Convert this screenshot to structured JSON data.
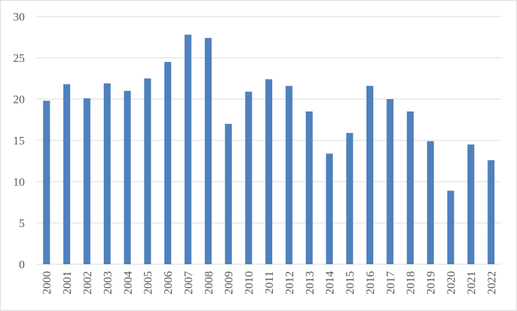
{
  "chart_data": {
    "type": "bar",
    "categories": [
      "2000",
      "2001",
      "2002",
      "2003",
      "2004",
      "2005",
      "2006",
      "2007",
      "2008",
      "2009",
      "2010",
      "2011",
      "2012",
      "2013",
      "2014",
      "2015",
      "2016",
      "2017",
      "2018",
      "2019",
      "2020",
      "2021",
      "2022"
    ],
    "values": [
      19.8,
      21.8,
      20.1,
      21.9,
      21.0,
      22.5,
      24.5,
      27.8,
      27.4,
      17.0,
      20.9,
      22.4,
      21.6,
      18.5,
      13.4,
      15.9,
      21.6,
      20.0,
      18.5,
      14.9,
      8.9,
      14.5,
      12.6
    ],
    "yticks": [
      "0",
      "5",
      "10",
      "15",
      "20",
      "25",
      "30"
    ],
    "ylim": [
      0,
      30
    ],
    "grid": true,
    "legend": "none",
    "colors": {
      "bar": "#4f81bd",
      "grid": "#d9d9d9",
      "text": "#595959"
    }
  }
}
